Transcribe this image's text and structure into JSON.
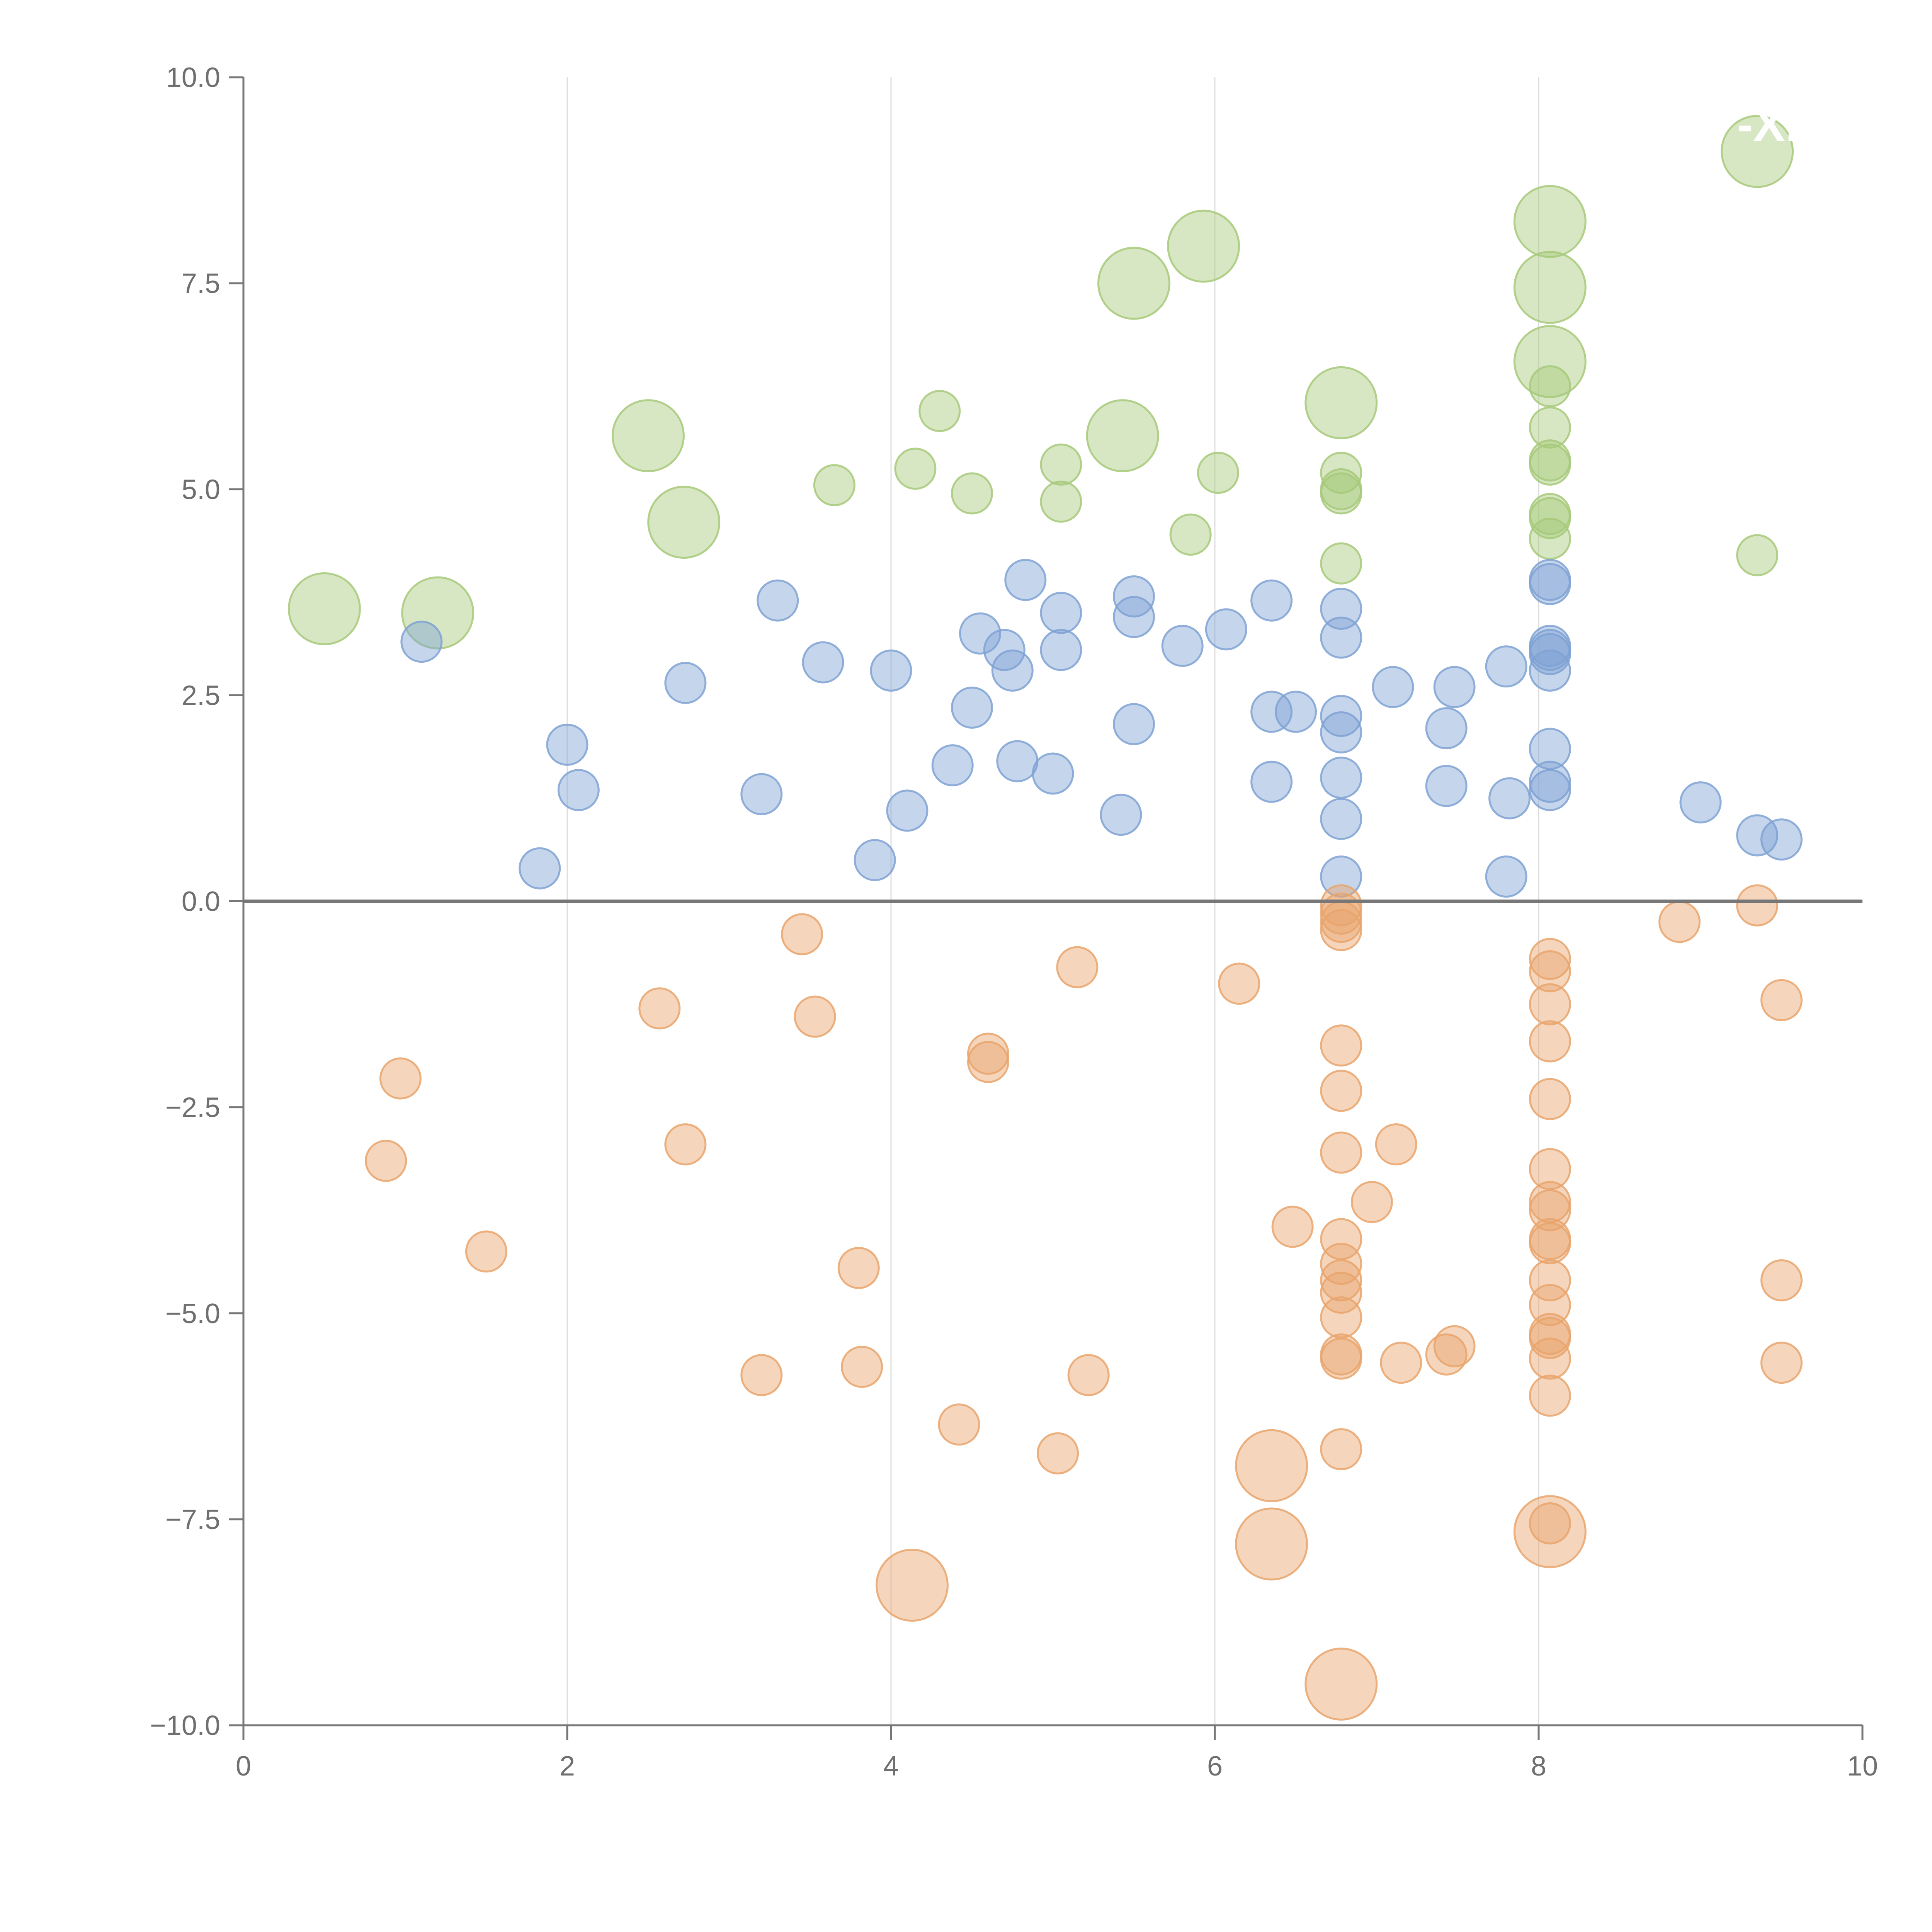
{
  "chart_data": {
    "type": "scatter",
    "title": "",
    "xlabel": "",
    "ylabel": "",
    "xlim": [
      0,
      10
    ],
    "ylim": [
      -10,
      10
    ],
    "x_ticks": [
      0,
      2,
      4,
      6,
      8,
      10
    ],
    "y_ticks": [
      -10,
      -7.5,
      -5,
      -2.5,
      0,
      2.5,
      5,
      7.5,
      10
    ],
    "x_tick_labels": [
      "0",
      "2",
      "4",
      "6",
      "8",
      "10"
    ],
    "y_tick_labels": [
      "−10.0",
      "−7.5",
      "−5.0",
      "−2.5",
      "0.0",
      "2.5",
      "5.0",
      "7.5",
      "10.0"
    ],
    "vertical_grid": true,
    "zero_line": true,
    "point_sizes": {
      "small": 1.0,
      "large": 2.0
    },
    "annotation_text": "-X.",
    "colors": {
      "green": "#a7c97a",
      "blue": "#7fa2d4",
      "orange": "#e9a46c",
      "axis": "#777777",
      "grid": "#dddddd",
      "zero": "#777777"
    },
    "series": [
      {
        "name": "green",
        "points": [
          [
            0.5,
            3.55,
            2
          ],
          [
            1.2,
            3.5,
            2
          ],
          [
            2.5,
            5.65,
            2
          ],
          [
            2.72,
            4.6,
            2
          ],
          [
            3.65,
            5.05,
            1
          ],
          [
            4.15,
            5.25,
            1
          ],
          [
            4.3,
            5.95,
            1
          ],
          [
            4.5,
            4.95,
            1
          ],
          [
            5.05,
            5.3,
            1
          ],
          [
            5.05,
            4.85,
            1
          ],
          [
            5.43,
            5.65,
            2
          ],
          [
            5.5,
            7.5,
            2
          ],
          [
            5.85,
            4.45,
            1
          ],
          [
            5.93,
            7.95,
            2
          ],
          [
            6.02,
            5.2,
            1
          ],
          [
            6.78,
            6.05,
            2
          ],
          [
            6.78,
            5.2,
            1
          ],
          [
            6.78,
            5.0,
            1
          ],
          [
            6.78,
            4.95,
            1
          ],
          [
            6.78,
            4.1,
            1
          ],
          [
            8.07,
            8.25,
            2
          ],
          [
            8.07,
            7.45,
            2
          ],
          [
            8.07,
            6.55,
            2
          ],
          [
            8.07,
            6.25,
            1
          ],
          [
            8.07,
            5.75,
            1
          ],
          [
            8.07,
            5.35,
            1
          ],
          [
            8.07,
            5.3,
            1
          ],
          [
            8.07,
            4.7,
            1
          ],
          [
            8.07,
            4.65,
            1
          ],
          [
            8.07,
            4.4,
            1
          ],
          [
            9.35,
            9.1,
            2
          ],
          [
            9.35,
            4.2,
            1
          ]
        ]
      },
      {
        "name": "blue",
        "points": [
          [
            1.1,
            3.15,
            1
          ],
          [
            1.83,
            0.4,
            1
          ],
          [
            2.0,
            1.9,
            1
          ],
          [
            2.07,
            1.35,
            1
          ],
          [
            2.73,
            2.65,
            1
          ],
          [
            3.2,
            1.3,
            1
          ],
          [
            3.3,
            3.65,
            1
          ],
          [
            3.58,
            2.9,
            1
          ],
          [
            3.9,
            0.5,
            1
          ],
          [
            4.0,
            2.8,
            1
          ],
          [
            4.1,
            1.1,
            1
          ],
          [
            4.38,
            1.65,
            1
          ],
          [
            4.5,
            2.35,
            1
          ],
          [
            4.55,
            3.25,
            1
          ],
          [
            4.7,
            3.05,
            1
          ],
          [
            4.75,
            2.8,
            1
          ],
          [
            4.78,
            1.7,
            1
          ],
          [
            4.83,
            3.9,
            1
          ],
          [
            5.0,
            1.55,
            1
          ],
          [
            5.05,
            3.5,
            1
          ],
          [
            5.05,
            3.05,
            1
          ],
          [
            5.42,
            1.05,
            1
          ],
          [
            5.5,
            3.7,
            1
          ],
          [
            5.5,
            3.45,
            1
          ],
          [
            5.5,
            2.15,
            1
          ],
          [
            5.8,
            3.1,
            1
          ],
          [
            6.07,
            3.3,
            1
          ],
          [
            6.35,
            3.65,
            1
          ],
          [
            6.35,
            2.3,
            1
          ],
          [
            6.35,
            1.45,
            1
          ],
          [
            6.5,
            2.3,
            1
          ],
          [
            6.78,
            3.55,
            1
          ],
          [
            6.78,
            3.2,
            1
          ],
          [
            6.78,
            2.25,
            1
          ],
          [
            6.78,
            2.05,
            1
          ],
          [
            6.78,
            1.5,
            1
          ],
          [
            6.78,
            1.0,
            1
          ],
          [
            6.78,
            0.3,
            1
          ],
          [
            7.1,
            2.6,
            1
          ],
          [
            7.43,
            2.1,
            1
          ],
          [
            7.43,
            1.4,
            1
          ],
          [
            7.48,
            2.6,
            1
          ],
          [
            7.8,
            2.85,
            1
          ],
          [
            7.8,
            0.3,
            1
          ],
          [
            7.82,
            1.25,
            1
          ],
          [
            8.07,
            3.9,
            1
          ],
          [
            8.07,
            3.85,
            1
          ],
          [
            8.07,
            3.1,
            1
          ],
          [
            8.07,
            3.05,
            1
          ],
          [
            8.07,
            3.0,
            1
          ],
          [
            8.07,
            2.8,
            1
          ],
          [
            8.07,
            1.85,
            1
          ],
          [
            8.07,
            1.45,
            1
          ],
          [
            8.07,
            1.35,
            1
          ],
          [
            9.0,
            1.2,
            1
          ],
          [
            9.35,
            0.8,
            1
          ],
          [
            9.5,
            0.75,
            1
          ]
        ]
      },
      {
        "name": "orange",
        "points": [
          [
            0.88,
            -3.15,
            1
          ],
          [
            0.97,
            -2.15,
            1
          ],
          [
            1.5,
            -4.25,
            1
          ],
          [
            2.57,
            -1.3,
            1
          ],
          [
            2.73,
            -2.95,
            1
          ],
          [
            3.2,
            -5.75,
            1
          ],
          [
            3.45,
            -0.4,
            1
          ],
          [
            3.53,
            -1.4,
            1
          ],
          [
            3.8,
            -4.45,
            1
          ],
          [
            3.82,
            -5.65,
            1
          ],
          [
            4.13,
            -8.3,
            2
          ],
          [
            4.42,
            -6.35,
            1
          ],
          [
            4.6,
            -1.85,
            1
          ],
          [
            4.6,
            -1.95,
            1
          ],
          [
            5.03,
            -6.7,
            1
          ],
          [
            5.15,
            -0.8,
            1
          ],
          [
            5.22,
            -5.75,
            1
          ],
          [
            6.15,
            -1.0,
            1
          ],
          [
            6.35,
            -6.85,
            2
          ],
          [
            6.35,
            -7.8,
            2
          ],
          [
            6.48,
            -3.95,
            1
          ],
          [
            6.78,
            -0.05,
            1
          ],
          [
            6.78,
            -0.15,
            1
          ],
          [
            6.78,
            -0.25,
            1
          ],
          [
            6.78,
            -0.35,
            1
          ],
          [
            6.78,
            -1.75,
            1
          ],
          [
            6.78,
            -2.3,
            1
          ],
          [
            6.78,
            -3.05,
            1
          ],
          [
            6.78,
            -4.1,
            1
          ],
          [
            6.78,
            -4.4,
            1
          ],
          [
            6.78,
            -4.6,
            1
          ],
          [
            6.78,
            -4.75,
            1
          ],
          [
            6.78,
            -5.05,
            1
          ],
          [
            6.78,
            -5.5,
            1
          ],
          [
            6.78,
            -5.55,
            1
          ],
          [
            6.78,
            -6.65,
            1
          ],
          [
            6.78,
            -9.5,
            2
          ],
          [
            6.97,
            -3.65,
            1
          ],
          [
            7.12,
            -2.95,
            1
          ],
          [
            7.15,
            -5.6,
            1
          ],
          [
            7.43,
            -5.5,
            1
          ],
          [
            7.48,
            -5.4,
            1
          ],
          [
            8.07,
            -0.7,
            1
          ],
          [
            8.07,
            -0.85,
            1
          ],
          [
            8.07,
            -1.25,
            1
          ],
          [
            8.07,
            -1.7,
            1
          ],
          [
            8.07,
            -2.4,
            1
          ],
          [
            8.07,
            -3.25,
            1
          ],
          [
            8.07,
            -3.65,
            1
          ],
          [
            8.07,
            -3.75,
            1
          ],
          [
            8.07,
            -4.1,
            1
          ],
          [
            8.07,
            -4.15,
            1
          ],
          [
            8.07,
            -4.6,
            1
          ],
          [
            8.07,
            -4.9,
            1
          ],
          [
            8.07,
            -5.25,
            1
          ],
          [
            8.07,
            -5.3,
            1
          ],
          [
            8.07,
            -5.55,
            1
          ],
          [
            8.07,
            -6.0,
            1
          ],
          [
            8.07,
            -7.55,
            1
          ],
          [
            8.07,
            -7.65,
            2
          ],
          [
            8.87,
            -0.25,
            1
          ],
          [
            9.35,
            -0.05,
            1
          ],
          [
            9.5,
            -1.2,
            1
          ],
          [
            9.5,
            -4.6,
            1
          ],
          [
            9.5,
            -5.6,
            1
          ]
        ]
      }
    ]
  }
}
